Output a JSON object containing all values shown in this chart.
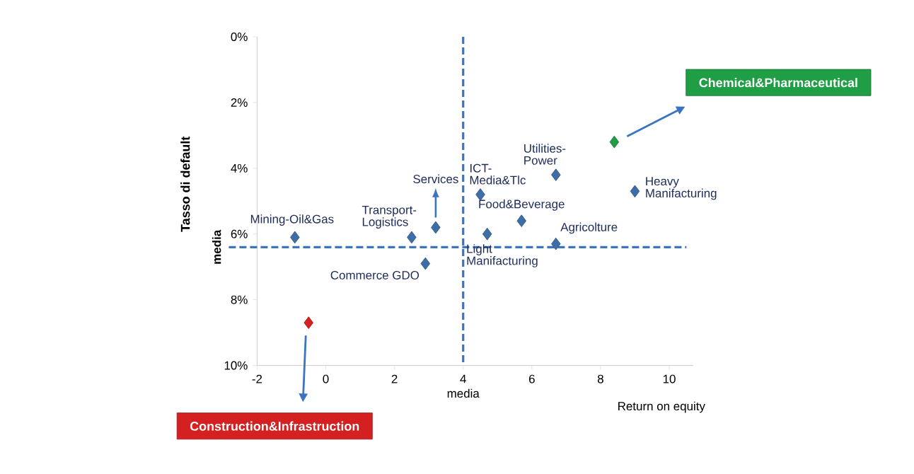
{
  "chart_data": {
    "type": "scatter",
    "ylabel": "Tasso di default",
    "xlabel": "Return on equity",
    "x": [
      -0.9,
      2.5,
      3.2,
      2.9,
      4.5,
      4.7,
      5.7,
      6.7,
      6.7,
      9.0,
      8.4,
      -0.5
    ],
    "values": [
      6.1,
      6.1,
      5.8,
      6.9,
      4.8,
      6.0,
      5.6,
      4.2,
      6.3,
      4.7,
      3.2,
      8.7
    ],
    "colors": [
      "#3d6ea8",
      "#3d6ea8",
      "#3d6ea8",
      "#3d6ea8",
      "#3d6ea8",
      "#3d6ea8",
      "#3d6ea8",
      "#3d6ea8",
      "#3d6ea8",
      "#3d6ea8",
      "#1f9e45",
      "#d42020"
    ],
    "marker": "diamond",
    "grid": false,
    "xlim": [
      -2,
      10.7
    ],
    "xticks": [
      -2,
      0,
      2,
      4,
      6,
      8,
      10
    ],
    "ylim": [
      10,
      0
    ],
    "yticks": [
      {
        "value": 0,
        "label": "0%"
      },
      {
        "value": 2,
        "label": "2%"
      },
      {
        "value": 4,
        "label": "4%"
      },
      {
        "value": 6,
        "label": "6%"
      },
      {
        "value": 8,
        "label": "8%"
      },
      {
        "value": 10,
        "label": "10%"
      }
    ],
    "ref_lines": [
      {
        "axis": "x",
        "value": 4,
        "label": "media",
        "color": "#3b74c0",
        "line_style": "dashed"
      },
      {
        "axis": "y",
        "value": 6.4,
        "label": "media",
        "color": "#3b74c0",
        "line_style": "dashed"
      }
    ],
    "annotations": [
      {
        "text": "Mining-Oil&Gas",
        "x": -0.9,
        "y": 6.1
      },
      {
        "text": "Transport-Logistics",
        "x": 2.5,
        "y": 6.1
      },
      {
        "text": "Services",
        "x": 3.2,
        "y": 5.8
      },
      {
        "text": "Commerce GDO",
        "x": 2.9,
        "y": 6.9
      },
      {
        "text": "ICT-Media&Tlc",
        "x": 4.5,
        "y": 4.8
      },
      {
        "text": "Light Manifacturing",
        "x": 4.7,
        "y": 6.0
      },
      {
        "text": "Food&Beverage",
        "x": 5.7,
        "y": 5.6
      },
      {
        "text": "Utilities-Power",
        "x": 6.7,
        "y": 4.2
      },
      {
        "text": "Agricolture",
        "x": 6.7,
        "y": 6.3
      },
      {
        "text": "Heavy Manifacturing",
        "x": 9.0,
        "y": 4.7
      },
      "Chemical&Pharmaceutical",
      "Construction&Infrastruction"
    ]
  }
}
